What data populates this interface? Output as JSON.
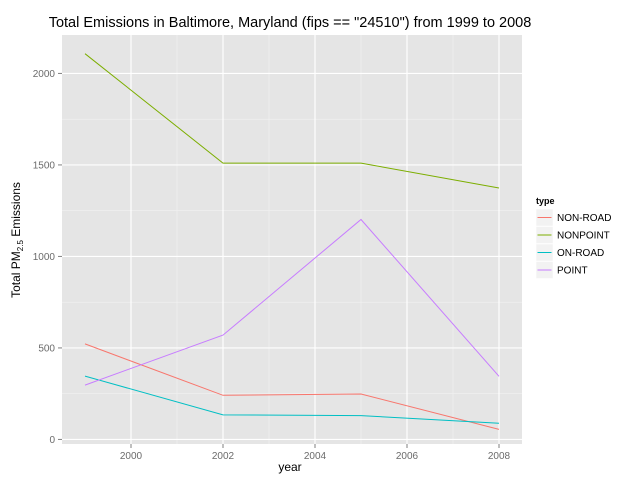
{
  "chart_data": {
    "type": "line",
    "title": "Total Emissions in Baltimore, Maryland (fips == \"24510\") from 1999 to 2008",
    "xlabel": "year",
    "ylabel_main": "Total PM",
    "ylabel_sub": "2.5",
    "ylabel_tail": " Emissions",
    "x": [
      1999,
      2002,
      2005,
      2008
    ],
    "xlim": [
      1998.5,
      2008.5
    ],
    "ylim": [
      -25,
      2210
    ],
    "x_ticks": [
      2000,
      2002,
      2004,
      2006,
      2008
    ],
    "y_ticks": [
      0,
      500,
      1000,
      1500,
      2000
    ],
    "grid": true,
    "legend": {
      "title": "type",
      "position": "right"
    },
    "series": [
      {
        "name": "NON-ROAD",
        "color": "#F8766D",
        "values": [
          522,
          241,
          248,
          55
        ]
      },
      {
        "name": "NONPOINT",
        "color": "#7CAE00",
        "values": [
          2108,
          1510,
          1510,
          1374
        ]
      },
      {
        "name": "ON-ROAD",
        "color": "#00BFC4",
        "values": [
          346,
          134,
          130,
          88
        ]
      },
      {
        "name": "POINT",
        "color": "#C77CFF",
        "values": [
          297,
          570,
          1202,
          345
        ]
      }
    ]
  }
}
